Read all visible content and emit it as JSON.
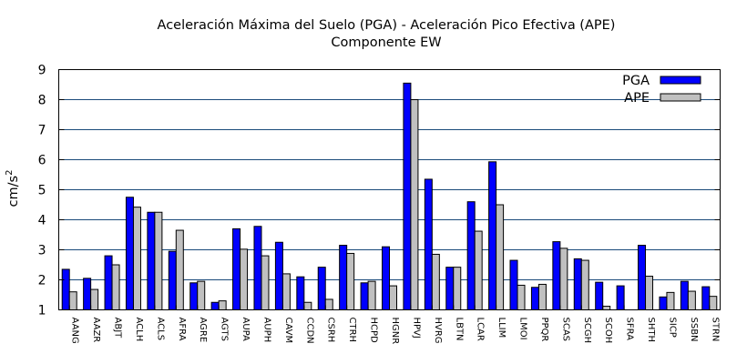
{
  "chart_data": {
    "type": "bar",
    "title": "Aceleración Máxima del Suelo (PGA) -  Aceleración Pico Efectiva (APE)",
    "subtitle": "Componente EW",
    "xlabel": "",
    "ylabel": "cm/s",
    "ylabel_superscript": "2",
    "ylim": [
      1,
      9
    ],
    "yticks": [
      1,
      2,
      3,
      4,
      5,
      6,
      7,
      8,
      9
    ],
    "grid": "horizontal",
    "legend_position": "top-right",
    "categories": [
      "AANG",
      "AAZR",
      "ABJT",
      "ACLH",
      "ACLS",
      "AFRA",
      "AGRE",
      "AGTS",
      "AUPA",
      "AUPH",
      "CAVM",
      "CCDN",
      "CSRH",
      "CTRH",
      "HCPD",
      "HGNR",
      "HPVJ",
      "HVRG",
      "LBTN",
      "LCAR",
      "LLIM",
      "LMOI",
      "PPQR",
      "SCAS",
      "SCGH",
      "SCOH",
      "SFRA",
      "SHTH",
      "SICP",
      "SSBN",
      "STRN"
    ],
    "series": [
      {
        "name": "PGA",
        "color": "#0000ff",
        "values": [
          2.35,
          2.05,
          2.8,
          4.75,
          4.25,
          2.95,
          1.9,
          1.25,
          3.7,
          3.78,
          3.25,
          2.1,
          2.42,
          3.15,
          1.9,
          3.1,
          8.55,
          5.35,
          2.42,
          4.6,
          5.93,
          2.65,
          1.75,
          3.27,
          2.7,
          1.92,
          1.8,
          3.15,
          1.43,
          1.95,
          1.77
        ]
      },
      {
        "name": "APE",
        "color": "#c0c0c0",
        "values": [
          1.6,
          1.68,
          2.5,
          4.42,
          4.25,
          3.65,
          1.95,
          1.3,
          3.02,
          2.8,
          2.2,
          1.25,
          1.35,
          2.88,
          1.95,
          1.8,
          8.0,
          2.85,
          2.42,
          3.62,
          4.5,
          1.82,
          1.85,
          3.05,
          2.65,
          1.12,
          null,
          2.12,
          1.58,
          1.62,
          1.45
        ]
      }
    ]
  }
}
